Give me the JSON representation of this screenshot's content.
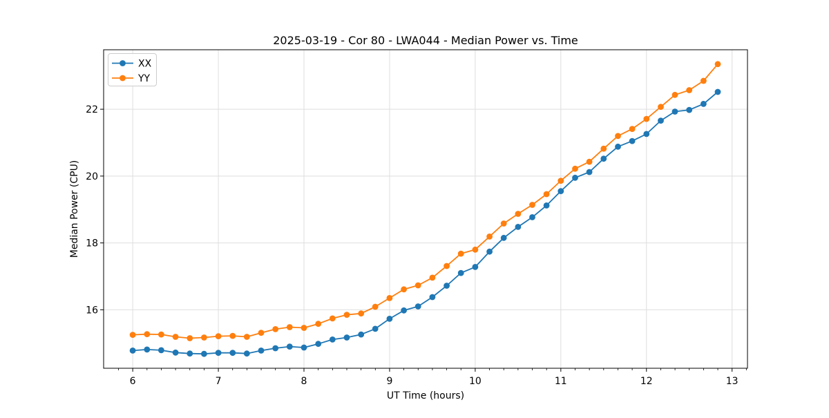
{
  "figure": {
    "background": "#ffffff"
  },
  "chart_data": {
    "type": "line",
    "title": "2025-03-19 - Cor 80 - LWA044 - Median Power vs. Time",
    "xlabel": "UT Time (hours)",
    "ylabel": "Median Power (CPU)",
    "xlim": [
      5.66,
      13.18
    ],
    "ylim": [
      14.25,
      23.78
    ],
    "xticks": [
      6,
      7,
      8,
      9,
      10,
      11,
      12,
      13
    ],
    "yticks": [
      16,
      18,
      20,
      22
    ],
    "x_minor_tick_step": 0.16667,
    "grid": true,
    "grid_color": "#dedede",
    "legend": {
      "position": "upper-left",
      "entries": [
        "XX",
        "YY"
      ]
    },
    "x": [
      6.0,
      6.167,
      6.333,
      6.5,
      6.667,
      6.833,
      7.0,
      7.167,
      7.333,
      7.5,
      7.667,
      7.833,
      8.0,
      8.167,
      8.333,
      8.5,
      8.667,
      8.833,
      9.0,
      9.167,
      9.333,
      9.5,
      9.667,
      9.833,
      10.0,
      10.167,
      10.333,
      10.5,
      10.667,
      10.833,
      11.0,
      11.167,
      11.333,
      11.5,
      11.667,
      11.833,
      12.0,
      12.167,
      12.333,
      12.5,
      12.667,
      12.833
    ],
    "series": [
      {
        "name": "XX",
        "color": "#1f77b4",
        "marker": "circle",
        "values": [
          14.78,
          14.81,
          14.79,
          14.72,
          14.69,
          14.68,
          14.71,
          14.71,
          14.69,
          14.78,
          14.85,
          14.9,
          14.87,
          14.98,
          15.11,
          15.17,
          15.26,
          15.43,
          15.73,
          15.98,
          16.1,
          16.38,
          16.72,
          17.1,
          17.28,
          17.74,
          18.15,
          18.48,
          18.77,
          19.12,
          19.55,
          19.95,
          20.12,
          20.52,
          20.88,
          21.05,
          21.26,
          21.66,
          21.93,
          21.98,
          22.16,
          22.52
        ]
      },
      {
        "name": "YY",
        "color": "#ff7f0e",
        "marker": "circle",
        "values": [
          15.25,
          15.27,
          15.26,
          15.19,
          15.15,
          15.17,
          15.21,
          15.22,
          15.19,
          15.31,
          15.42,
          15.48,
          15.46,
          15.58,
          15.74,
          15.85,
          15.89,
          16.09,
          16.35,
          16.61,
          16.73,
          16.96,
          17.31,
          17.68,
          17.8,
          18.19,
          18.58,
          18.87,
          19.14,
          19.46,
          19.86,
          20.22,
          20.43,
          20.82,
          21.2,
          21.41,
          21.71,
          22.07,
          22.43,
          22.57,
          22.85,
          23.35
        ]
      }
    ]
  }
}
